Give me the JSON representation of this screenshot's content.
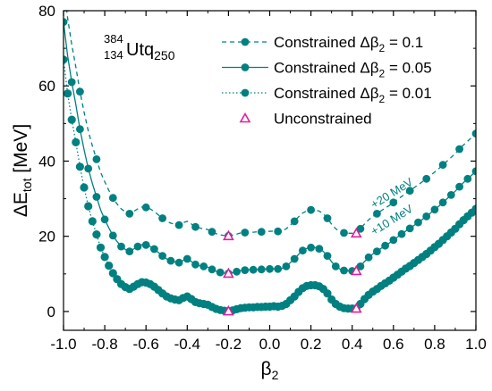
{
  "chart_data": {
    "type": "line",
    "title": "",
    "isotope": {
      "mass": "384",
      "charge": "134",
      "symbol": "Utq",
      "suffix": "250"
    },
    "xlabel": {
      "main": "β",
      "sub": "2"
    },
    "ylabel": {
      "pre": "ΔE",
      "sub": "tot",
      "post": " [MeV]"
    },
    "xlim": [
      -1.0,
      1.0
    ],
    "ylim": [
      -5,
      80
    ],
    "xticks": [
      -1.0,
      -0.8,
      -0.6,
      -0.4,
      -0.2,
      0.0,
      0.2,
      0.4,
      0.6,
      0.8,
      1.0
    ],
    "xtick_labels": [
      "-1.0",
      "-0.8",
      "-0.6",
      "-0.4",
      "-0.2",
      "0.0",
      "0.2",
      "0.4",
      "0.6",
      "0.8",
      "1.0"
    ],
    "yticks": [
      0,
      20,
      40,
      60,
      80
    ],
    "ytick_labels": [
      "0",
      "20",
      "40",
      "60",
      "80"
    ],
    "color": "#008080",
    "marker_color": "#e0209a",
    "legend_position": "top-right",
    "base_curve": {
      "x": [
        -1.0,
        -0.98,
        -0.96,
        -0.94,
        -0.92,
        -0.9,
        -0.88,
        -0.86,
        -0.84,
        -0.82,
        -0.8,
        -0.78,
        -0.76,
        -0.74,
        -0.72,
        -0.7,
        -0.68,
        -0.66,
        -0.64,
        -0.62,
        -0.6,
        -0.58,
        -0.56,
        -0.54,
        -0.52,
        -0.5,
        -0.48,
        -0.46,
        -0.44,
        -0.42,
        -0.4,
        -0.38,
        -0.36,
        -0.34,
        -0.32,
        -0.3,
        -0.28,
        -0.26,
        -0.24,
        -0.22,
        -0.2,
        -0.18,
        -0.16,
        -0.14,
        -0.12,
        -0.1,
        -0.08,
        -0.06,
        -0.04,
        -0.02,
        0.0,
        0.02,
        0.04,
        0.06,
        0.08,
        0.1,
        0.12,
        0.14,
        0.16,
        0.18,
        0.2,
        0.22,
        0.24,
        0.26,
        0.28,
        0.3,
        0.32,
        0.34,
        0.36,
        0.38,
        0.4,
        0.42,
        0.44,
        0.46,
        0.48,
        0.5,
        0.52,
        0.54,
        0.56,
        0.58,
        0.6,
        0.62,
        0.64,
        0.66,
        0.68,
        0.7,
        0.72,
        0.74,
        0.76,
        0.78,
        0.8,
        0.82,
        0.84,
        0.86,
        0.88,
        0.9,
        0.92,
        0.94,
        0.96,
        0.98,
        1.0
      ],
      "y": [
        67,
        58,
        51,
        45,
        38.5,
        33,
        28,
        24,
        20.5,
        17,
        14.5,
        12.2,
        10.2,
        8.6,
        7.3,
        6.5,
        6.0,
        6.6,
        7.3,
        7.8,
        7.7,
        7.3,
        6.6,
        5.7,
        4.8,
        4.0,
        3.5,
        3.2,
        3.0,
        3.6,
        4.0,
        3.3,
        2.5,
        2.2,
        2.0,
        1.8,
        1.2,
        0.7,
        0.4,
        0.2,
        0.1,
        0.3,
        0.6,
        0.9,
        1.0,
        1.1,
        1.1,
        1.2,
        1.2,
        1.3,
        1.3,
        1.4,
        1.3,
        1.5,
        2.0,
        3.0,
        4.0,
        5.2,
        6.2,
        6.8,
        7.0,
        7.0,
        6.7,
        6.0,
        4.8,
        3.2,
        2.0,
        1.3,
        0.9,
        0.8,
        0.8,
        0.8,
        2.0,
        3.3,
        4.4,
        5.3,
        6.0,
        6.8,
        7.5,
        8.2,
        9.0,
        9.8,
        10.6,
        11.4,
        12.1,
        12.9,
        13.7,
        14.5,
        15.3,
        16.2,
        17.1,
        18.0,
        19.0,
        20.0,
        21.0,
        22.0,
        23.2,
        24.3,
        25.3,
        26.3,
        27.3
      ]
    },
    "series": [
      {
        "name": "Constrained Δβ",
        "sub": "2",
        "value": "0.1",
        "style": "dashed",
        "offset": 20,
        "step": 0.08
      },
      {
        "name": "Constrained Δβ",
        "sub": "2",
        "value": "0.05",
        "style": "solid",
        "offset": 10,
        "step": 0.04
      },
      {
        "name": "Constrained Δβ",
        "sub": "2",
        "value": "0.01",
        "style": "dotted",
        "offset": 0,
        "step": 0.02
      }
    ],
    "unconstrained": {
      "name": "Unconstrained",
      "x": [
        -0.2,
        0.42
      ],
      "offsets": [
        0,
        10,
        20
      ]
    },
    "annotations": [
      "+20 MeV",
      "+10 MeV"
    ]
  }
}
